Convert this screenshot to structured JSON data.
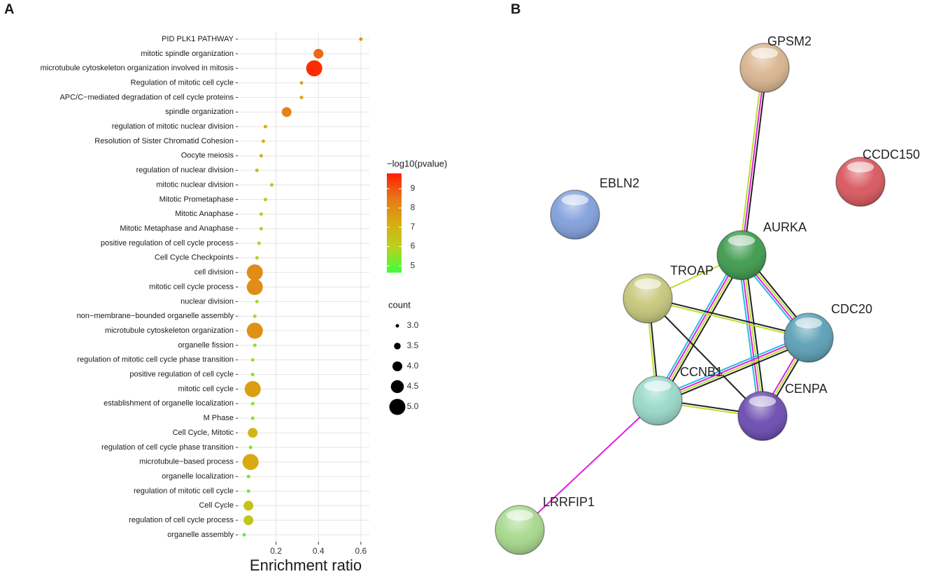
{
  "panel_labels": [
    "A",
    "B"
  ],
  "chart_data": {
    "type": "dot",
    "xlabel": "Enrichment ratio",
    "categories": [
      "PID PLK1 PATHWAY",
      "mitotic spindle organization",
      "microtubule cytoskeleton organization involved in mitosis",
      "Regulation of mitotic cell cycle",
      "APC/C−mediated degradation of cell cycle proteins",
      "spindle organization",
      "regulation of mitotic nuclear division",
      "Resolution of Sister Chromatid Cohesion",
      "Oocyte meiosis",
      "regulation of nuclear division",
      "mitotic nuclear division",
      "Mitotic Prometaphase",
      "Mitotic Anaphase",
      "Mitotic Metaphase and Anaphase",
      "positive regulation of cell cycle process",
      "Cell Cycle Checkpoints",
      "cell division",
      "mitotic cell cycle process",
      "nuclear division",
      "non−membrane−bounded organelle assembly",
      "microtubule cytoskeleton organization",
      "organelle fission",
      "regulation of mitotic cell cycle phase transition",
      "positive regulation of cell cycle",
      "mitotic cell cycle",
      "establishment of organelle localization",
      "M Phase",
      "Cell Cycle, Mitotic",
      "regulation of cell cycle phase transition",
      "microtubule−based process",
      "organelle localization",
      "regulation of mitotic cell cycle",
      "Cell Cycle",
      "regulation of cell cycle process",
      "organelle assembly"
    ],
    "values": [
      0.6,
      0.4,
      0.38,
      0.32,
      0.32,
      0.25,
      0.15,
      0.14,
      0.13,
      0.11,
      0.18,
      0.15,
      0.13,
      0.13,
      0.12,
      0.11,
      0.1,
      0.1,
      0.11,
      0.1,
      0.1,
      0.1,
      0.09,
      0.09,
      0.09,
      0.09,
      0.09,
      0.09,
      0.08,
      0.08,
      0.07,
      0.07,
      0.07,
      0.07,
      0.05
    ],
    "color_values": [
      7.8,
      8.7,
      9.6,
      7.3,
      7.3,
      8.2,
      7.2,
      7.1,
      7.0,
      6.8,
      6.6,
      6.4,
      6.2,
      6.1,
      6.0,
      5.9,
      8.0,
      8.0,
      5.8,
      5.7,
      7.9,
      5.6,
      5.6,
      5.5,
      7.6,
      5.4,
      5.4,
      6.9,
      5.3,
      7.3,
      5.2,
      5.1,
      6.5,
      6.4,
      4.8
    ],
    "size_values": [
      3,
      4,
      5,
      3,
      3,
      4,
      3,
      3,
      3,
      3,
      3,
      3,
      3,
      3,
      3,
      3,
      5,
      5,
      3,
      3,
      5,
      3,
      3,
      3,
      5,
      3,
      3,
      4,
      3,
      5,
      3,
      3,
      4,
      4,
      3
    ],
    "xlim": [
      0.02,
      0.64
    ],
    "xticks": [
      0.2,
      0.4,
      0.6
    ],
    "grid": true,
    "color_title": "−log10(pvalue)",
    "clim": [
      4.64,
      9.8
    ],
    "cticks": [
      5,
      6,
      7,
      8,
      9
    ],
    "colormap": [
      "#3cff3c",
      "#b8d21c",
      "#d6ad10",
      "#e8761a",
      "#ff1e00"
    ],
    "size_title": "count",
    "size_ticks": [
      {
        "value": 3,
        "label": "3.0"
      },
      {
        "value": 3.5,
        "label": "3.5"
      },
      {
        "value": 4,
        "label": "4.0"
      },
      {
        "value": 4.5,
        "label": "4.5"
      },
      {
        "value": 5,
        "label": "5.0"
      }
    ]
  },
  "network": {
    "nodes": [
      {
        "label": "GPSM2",
        "color": "#d8b48e"
      },
      {
        "label": "CCDC150",
        "color": "#d8565c"
      },
      {
        "label": "EBLN2",
        "color": "#809fdb"
      },
      {
        "label": "AURKA",
        "color": "#3c9a4c"
      },
      {
        "label": "TROAP",
        "color": "#c6c67a"
      },
      {
        "label": "CDC20",
        "color": "#5a9fb5"
      },
      {
        "label": "CCNB1",
        "color": "#98d8c8"
      },
      {
        "label": "CENPA",
        "color": "#6a4ab0"
      },
      {
        "label": "LRRFIP1",
        "color": "#a6d98c"
      }
    ],
    "edges": [
      {
        "source": 0,
        "target": 3,
        "colors": [
          "#222222",
          "#e020e0",
          "#b8e030"
        ]
      },
      {
        "source": 3,
        "target": 4,
        "colors": [
          "#b8e030"
        ]
      },
      {
        "source": 3,
        "target": 5,
        "colors": [
          "#222222",
          "#b8e030",
          "#e020e0",
          "#20c0e0"
        ]
      },
      {
        "source": 3,
        "target": 6,
        "colors": [
          "#222222",
          "#b8e030",
          "#e020e0",
          "#20c0e0"
        ]
      },
      {
        "source": 3,
        "target": 7,
        "colors": [
          "#222222",
          "#b8e030",
          "#e020e0",
          "#20c0e0"
        ]
      },
      {
        "source": 4,
        "target": 5,
        "colors": [
          "#222222",
          "#b8e030"
        ]
      },
      {
        "source": 4,
        "target": 6,
        "colors": [
          "#222222",
          "#b8e030"
        ]
      },
      {
        "source": 4,
        "target": 7,
        "colors": [
          "#222222"
        ]
      },
      {
        "source": 5,
        "target": 6,
        "colors": [
          "#222222",
          "#b8e030",
          "#e020e0",
          "#20c0e0"
        ]
      },
      {
        "source": 5,
        "target": 7,
        "colors": [
          "#222222",
          "#b8e030",
          "#e020e0"
        ]
      },
      {
        "source": 6,
        "target": 7,
        "colors": [
          "#222222",
          "#b8e030"
        ]
      },
      {
        "source": 6,
        "target": 8,
        "colors": [
          "#e020e0"
        ]
      }
    ]
  }
}
